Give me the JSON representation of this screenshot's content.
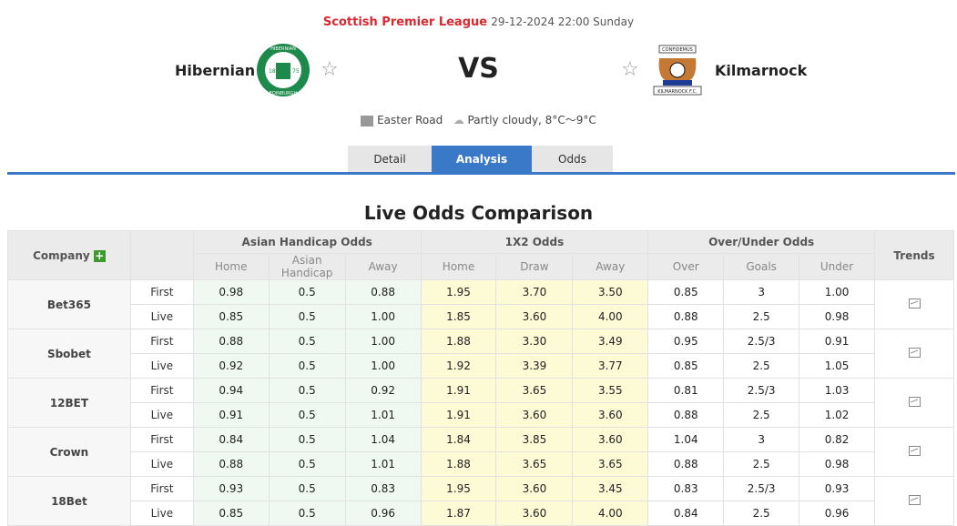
{
  "match": {
    "league": "Scottish Premier League",
    "datetime": "29-12-2024 22:00 Sunday",
    "home": "Hibernian",
    "away": "Kilmarnock",
    "vs": "VS",
    "venue": "Easter Road",
    "weather": "Partly cloudy, 8°C～9°C",
    "home_badge": {
      "top": "HIBERNIAN",
      "left": "18",
      "right": "75",
      "bottom": "EDINBURGH"
    },
    "away_badge": {
      "top": "CONFIDEMUS",
      "bottom": "KILMARNOCK F.C."
    }
  },
  "tabs": [
    {
      "label": "Detail"
    },
    {
      "label": "Analysis",
      "active": true
    },
    {
      "label": "Odds"
    }
  ],
  "title": "Live Odds Comparison",
  "colors": {
    "accent": "#3a78c8",
    "league": "#d9282f",
    "ah_bg": "#eff9f1",
    "x12_bg": "#fdfad6"
  },
  "table": {
    "company_header": "Company",
    "trends_header": "Trends",
    "groups": [
      "Asian Handicap Odds",
      "1X2 Odds",
      "Over/Under Odds"
    ],
    "sub": [
      "Home",
      "Asian Handicap",
      "Away",
      "Home",
      "Draw",
      "Away",
      "Over",
      "Goals",
      "Under"
    ],
    "rows": [
      {
        "company": "Bet365",
        "lines": [
          {
            "type": "First",
            "v": [
              "0.98",
              "0.5",
              "0.88",
              "1.95",
              "3.70",
              "3.50",
              "0.85",
              "3",
              "1.00"
            ]
          },
          {
            "type": "Live",
            "v": [
              "0.85",
              "0.5",
              "1.00",
              "1.85",
              "3.60",
              "4.00",
              "0.88",
              "2.5",
              "0.98"
            ]
          }
        ]
      },
      {
        "company": "Sbobet",
        "lines": [
          {
            "type": "First",
            "v": [
              "0.88",
              "0.5",
              "1.00",
              "1.88",
              "3.30",
              "3.49",
              "0.95",
              "2.5/3",
              "0.91"
            ]
          },
          {
            "type": "Live",
            "v": [
              "0.92",
              "0.5",
              "1.00",
              "1.92",
              "3.39",
              "3.77",
              "0.85",
              "2.5",
              "1.05"
            ]
          }
        ]
      },
      {
        "company": "12BET",
        "lines": [
          {
            "type": "First",
            "v": [
              "0.94",
              "0.5",
              "0.92",
              "1.91",
              "3.65",
              "3.55",
              "0.81",
              "2.5/3",
              "1.03"
            ]
          },
          {
            "type": "Live",
            "v": [
              "0.91",
              "0.5",
              "1.01",
              "1.91",
              "3.60",
              "3.60",
              "0.88",
              "2.5",
              "1.02"
            ]
          }
        ]
      },
      {
        "company": "Crown",
        "lines": [
          {
            "type": "First",
            "v": [
              "0.84",
              "0.5",
              "1.04",
              "1.84",
              "3.85",
              "3.60",
              "1.04",
              "3",
              "0.82"
            ]
          },
          {
            "type": "Live",
            "v": [
              "0.88",
              "0.5",
              "1.01",
              "1.88",
              "3.65",
              "3.65",
              "0.88",
              "2.5",
              "0.98"
            ]
          }
        ]
      },
      {
        "company": "18Bet",
        "lines": [
          {
            "type": "First",
            "v": [
              "0.93",
              "0.5",
              "0.83",
              "1.95",
              "3.60",
              "3.45",
              "0.83",
              "2.5/3",
              "0.93"
            ]
          },
          {
            "type": "Live",
            "v": [
              "0.85",
              "0.5",
              "0.96",
              "1.87",
              "3.60",
              "4.00",
              "0.84",
              "2.5",
              "0.96"
            ]
          }
        ]
      }
    ]
  }
}
